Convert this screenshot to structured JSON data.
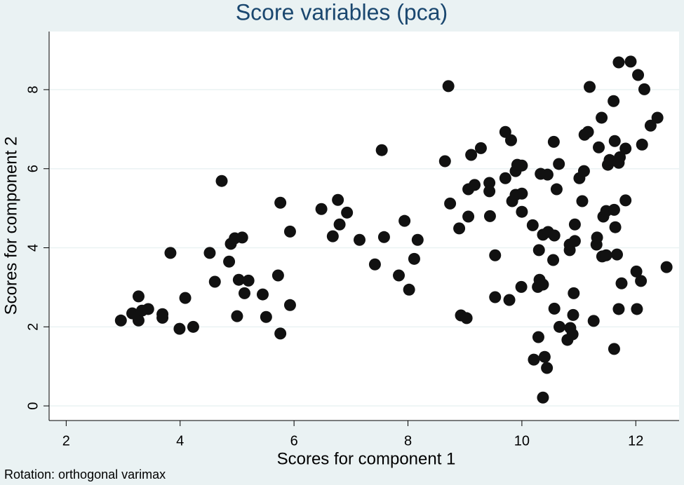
{
  "chart_data": {
    "type": "scatter",
    "title": "Score variables (pca)",
    "x_label": "Scores for component 1",
    "y_label": "Scores for component 2",
    "note": "Rotation: orthogonal varimax",
    "color": "#111111",
    "grid": true,
    "xlim": [
      1.7,
      12.76
    ],
    "ylim": [
      -0.37,
      9.47
    ],
    "xticks": [
      2,
      4,
      6,
      8,
      10,
      12
    ],
    "yticks": [
      0,
      2,
      4,
      6,
      8
    ],
    "x": [
      2.96,
      3.16,
      3.27,
      3.27,
      3.33,
      3.44,
      3.69,
      3.69,
      3.83,
      3.99,
      4.09,
      4.23,
      4.52,
      4.61,
      4.73,
      4.86,
      4.89,
      4.96,
      5.0,
      5.03,
      5.09,
      5.13,
      5.2,
      5.45,
      5.51,
      5.72,
      5.76,
      5.76,
      5.93,
      5.93,
      6.48,
      6.68,
      6.77,
      6.8,
      6.93,
      7.15,
      7.42,
      7.54,
      7.58,
      7.84,
      7.94,
      8.02,
      8.11,
      8.17,
      8.65,
      8.71,
      8.74,
      8.9,
      8.93,
      9.03,
      9.06,
      9.06,
      9.11,
      9.17,
      9.28,
      9.43,
      9.43,
      9.44,
      9.53,
      9.53,
      9.71,
      9.71,
      9.78,
      9.81,
      9.83,
      9.89,
      9.89,
      9.92,
      9.99,
      10.0,
      10.0,
      10.0,
      10.19,
      10.21,
      10.28,
      10.3,
      10.29,
      10.31,
      10.33,
      10.37,
      10.37,
      10.37,
      10.4,
      10.44,
      10.45,
      10.46,
      10.55,
      10.56,
      10.57,
      10.57,
      10.61,
      10.65,
      10.66,
      10.8,
      10.84,
      10.84,
      10.85,
      10.89,
      10.9,
      10.91,
      10.93,
      10.93,
      11.01,
      11.06,
      11.09,
      11.1,
      11.16,
      11.19,
      11.26,
      11.31,
      11.32,
      11.35,
      11.4,
      11.41,
      11.43,
      11.48,
      11.48,
      11.51,
      11.54,
      11.61,
      11.62,
      11.62,
      11.63,
      11.64,
      11.67,
      11.7,
      11.7,
      11.7,
      11.72,
      11.75,
      11.82,
      11.82,
      11.91,
      12.01,
      12.02,
      12.04,
      12.09,
      12.11,
      12.15,
      12.26,
      12.38,
      12.54
    ],
    "values": [
      2.16,
      2.34,
      2.77,
      2.16,
      2.41,
      2.45,
      2.32,
      2.23,
      3.87,
      1.95,
      2.73,
      2.0,
      3.87,
      3.14,
      5.69,
      3.65,
      4.1,
      4.24,
      2.27,
      3.19,
      4.26,
      2.85,
      3.17,
      2.82,
      2.25,
      3.3,
      5.14,
      1.83,
      2.55,
      4.41,
      4.98,
      4.29,
      5.21,
      4.59,
      4.89,
      4.2,
      3.58,
      6.47,
      4.27,
      3.3,
      4.68,
      2.94,
      3.72,
      4.2,
      6.19,
      8.09,
      5.12,
      4.49,
      2.29,
      2.22,
      4.79,
      5.48,
      6.35,
      5.59,
      6.52,
      5.64,
      5.43,
      4.8,
      3.81,
      2.75,
      5.76,
      6.93,
      2.68,
      6.72,
      5.18,
      5.34,
      5.94,
      6.1,
      3.01,
      4.91,
      6.08,
      5.37,
      4.57,
      1.17,
      3.01,
      3.94,
      1.74,
      3.19,
      5.87,
      4.33,
      3.07,
      0.21,
      1.24,
      0.96,
      5.85,
      4.4,
      3.69,
      6.68,
      4.31,
      2.46,
      5.48,
      6.12,
      2.0,
      1.67,
      3.94,
      4.08,
      1.97,
      1.81,
      2.3,
      2.85,
      4.17,
      4.59,
      5.76,
      5.18,
      5.94,
      6.86,
      6.93,
      8.07,
      2.15,
      4.08,
      4.26,
      6.54,
      7.29,
      3.78,
      4.79,
      3.81,
      4.93,
      6.1,
      6.22,
      7.71,
      1.44,
      4.96,
      6.7,
      4.52,
      3.83,
      8.69,
      2.45,
      6.15,
      6.29,
      3.1,
      6.51,
      5.2,
      8.71,
      3.4,
      2.45,
      8.37,
      3.16,
      6.61,
      8.01,
      7.09,
      7.29,
      3.51
    ]
  }
}
